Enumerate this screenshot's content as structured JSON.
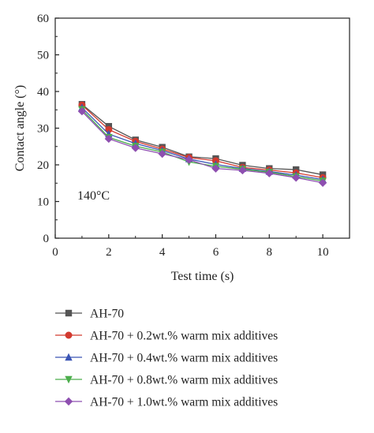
{
  "chart_data": {
    "type": "line",
    "title": "",
    "xlabel": "Test time (s)",
    "ylabel": "Contact angle (°)",
    "xlim": [
      0,
      11
    ],
    "ylim": [
      0,
      60
    ],
    "xticks": [
      0,
      2,
      4,
      6,
      8,
      10
    ],
    "yticks": [
      0,
      10,
      20,
      30,
      40,
      50,
      60
    ],
    "annotation": "140°C",
    "legend_position": "bottom",
    "grid": false,
    "x": [
      1,
      2,
      3,
      4,
      5,
      6,
      7,
      8,
      9,
      10
    ],
    "series": [
      {
        "name": "AH-70",
        "color": "#555555",
        "marker": "square",
        "values": [
          36.5,
          30.5,
          26.8,
          24.8,
          22.2,
          21.7,
          19.9,
          19.0,
          18.7,
          17.3
        ]
      },
      {
        "name": "AH-70 + 0.2wt.% warm mix additives",
        "color": "#d23a2f",
        "marker": "circle",
        "values": [
          36.3,
          29.6,
          26.4,
          24.3,
          22.0,
          21.1,
          19.3,
          18.6,
          17.8,
          16.5
        ]
      },
      {
        "name": "AH-70 + 0.4wt.% warm mix additives",
        "color": "#3b55b5",
        "marker": "triangle-up",
        "values": [
          35.6,
          28.4,
          25.8,
          23.9,
          21.6,
          20.1,
          19.0,
          18.2,
          17.2,
          16.0
        ]
      },
      {
        "name": "AH-70 + 0.8wt.% warm mix additives",
        "color": "#4cae4c",
        "marker": "triangle-down",
        "values": [
          35.1,
          27.5,
          25.1,
          23.5,
          20.8,
          19.6,
          18.8,
          18.0,
          16.8,
          15.6
        ]
      },
      {
        "name": "AH-70 + 1.0wt.% warm mix additives",
        "color": "#8e4fb0",
        "marker": "diamond",
        "values": [
          34.6,
          27.1,
          24.6,
          23.0,
          21.4,
          19.0,
          18.5,
          17.7,
          16.5,
          15.1
        ]
      }
    ]
  }
}
